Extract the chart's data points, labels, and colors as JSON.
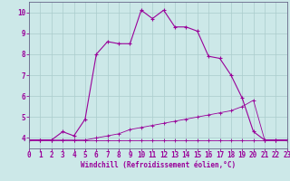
{
  "background_color": "#cce8e8",
  "grid_color": "#aacccc",
  "line_color": "#990099",
  "spine_color": "#666688",
  "xlim": [
    0,
    23
  ],
  "ylim": [
    3.5,
    10.5
  ],
  "xticks": [
    0,
    1,
    2,
    3,
    4,
    5,
    6,
    7,
    8,
    9,
    10,
    11,
    12,
    13,
    14,
    15,
    16,
    17,
    18,
    19,
    20,
    21,
    22,
    23
  ],
  "yticks": [
    4,
    5,
    6,
    7,
    8,
    9,
    10
  ],
  "xlabel": "Windchill (Refroidissement éolien,°C)",
  "curve1_x": [
    0,
    1,
    2,
    3,
    4,
    5,
    6,
    7,
    8,
    9,
    10,
    11,
    12,
    13,
    14,
    15,
    16,
    17,
    18,
    19,
    20,
    21,
    22,
    23
  ],
  "curve1_y": [
    3.9,
    3.9,
    3.9,
    4.3,
    4.1,
    4.9,
    8.0,
    8.6,
    8.5,
    8.5,
    10.1,
    9.7,
    10.1,
    9.3,
    9.3,
    9.1,
    7.9,
    7.8,
    7.0,
    5.9,
    4.3,
    3.9,
    3.9,
    3.9
  ],
  "curve2_x": [
    0,
    1,
    2,
    3,
    4,
    5,
    6,
    7,
    8,
    9,
    10,
    11,
    12,
    13,
    14,
    15,
    16,
    17,
    18,
    19,
    20,
    21,
    22,
    23
  ],
  "curve2_y": [
    3.9,
    3.9,
    3.9,
    3.9,
    3.9,
    3.9,
    4.0,
    4.1,
    4.2,
    4.4,
    4.5,
    4.6,
    4.7,
    4.8,
    4.9,
    5.0,
    5.1,
    5.2,
    5.3,
    5.5,
    5.8,
    3.9,
    3.9,
    3.9
  ],
  "curve3_x": [
    0,
    1,
    2,
    3,
    4,
    5,
    6,
    7,
    8,
    9,
    10,
    11,
    12,
    13,
    14,
    15,
    16,
    17,
    18,
    19,
    20,
    21,
    22,
    23
  ],
  "curve3_y": [
    3.9,
    3.9,
    3.9,
    3.9,
    3.9,
    3.9,
    3.9,
    3.9,
    3.9,
    3.9,
    3.9,
    3.9,
    3.9,
    3.9,
    3.9,
    3.9,
    3.9,
    3.9,
    3.9,
    3.9,
    3.9,
    3.9,
    3.9,
    3.9
  ],
  "tick_fontsize": 5.5,
  "xlabel_fontsize": 5.5
}
